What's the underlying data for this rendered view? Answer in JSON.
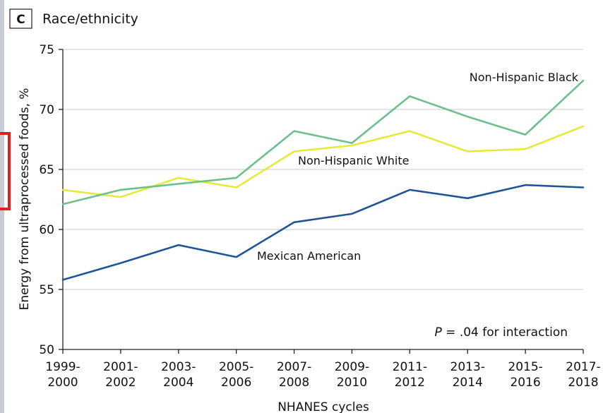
{
  "chart_data": {
    "type": "line",
    "panel_letter": "C",
    "title": "Race/ethnicity",
    "xlabel": "NHANES cycles",
    "ylabel": "Energy from ultraprocessed foods, %",
    "ylim": [
      50,
      75
    ],
    "yticks": [
      50,
      55,
      60,
      65,
      70,
      75
    ],
    "grid": true,
    "categories": [
      [
        "1999-",
        "2000"
      ],
      [
        "2001-",
        "2002"
      ],
      [
        "2003-",
        "2004"
      ],
      [
        "2005-",
        "2006"
      ],
      [
        "2007-",
        "2008"
      ],
      [
        "2009-",
        "2010"
      ],
      [
        "2011-",
        "2012"
      ],
      [
        "2013-",
        "2014"
      ],
      [
        "2015-",
        "2016"
      ],
      [
        "2017-",
        "2018"
      ]
    ],
    "series": [
      {
        "name": "Non-Hispanic Black",
        "color": "#6cc08b",
        "values": [
          62.1,
          63.3,
          63.8,
          64.3,
          68.2,
          67.2,
          71.1,
          69.4,
          67.9,
          72.4
        ]
      },
      {
        "name": "Non-Hispanic White",
        "color": "#e5ea3a",
        "values": [
          63.3,
          62.7,
          64.3,
          63.5,
          66.5,
          67.0,
          68.2,
          66.5,
          66.7,
          68.6
        ]
      },
      {
        "name": "Mexican American",
        "color": "#1f5597",
        "values": [
          55.8,
          57.2,
          58.7,
          57.7,
          60.6,
          61.3,
          63.3,
          62.6,
          63.7,
          63.5
        ]
      }
    ],
    "annotation": {
      "prefix": "P",
      "text": " = .04 for interaction"
    }
  }
}
